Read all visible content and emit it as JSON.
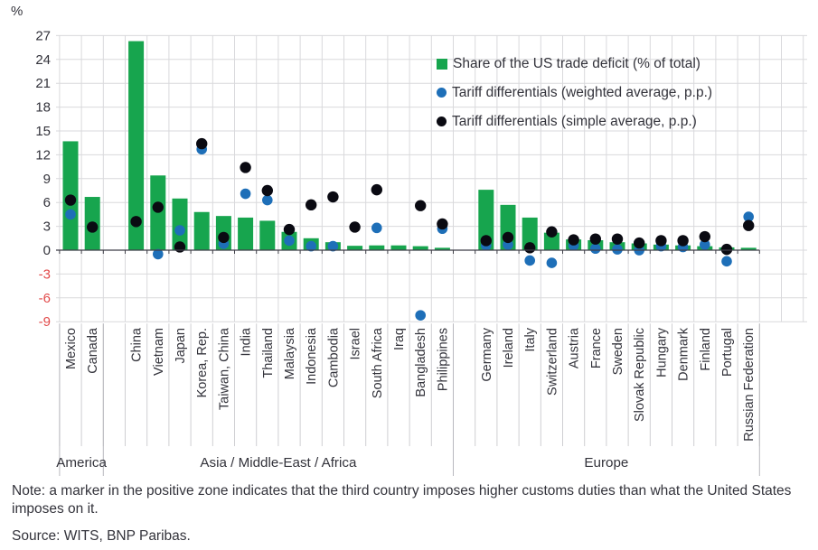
{
  "chart_data": {
    "type": "bar",
    "title": "",
    "ylabel": "%",
    "ylim": [
      -9,
      27
    ],
    "ytick_step": 3,
    "grid": true,
    "legend_position": "inside-top-right",
    "series_meta": {
      "bar": {
        "name": "Share of the US trade deficit (% of total)",
        "color": "#17a54e"
      },
      "weighted": {
        "name": "Tariff differentials (weighted average, p.p.)",
        "color": "#1e6fb8"
      },
      "simple": {
        "name": "Tariff differentials (simple average, p.p.)",
        "color": "#0a0a12"
      }
    },
    "groups": [
      {
        "label": "America",
        "rows": [
          {
            "country": "Mexico",
            "bar": 13.7,
            "weighted": 4.5,
            "simple": 6.3
          },
          {
            "country": "Canada",
            "bar": 6.7,
            "weighted": null,
            "simple": 2.9
          }
        ]
      },
      {
        "label": "Asia / Middle-East / Africa",
        "rows": [
          {
            "country": "China",
            "bar": 26.3,
            "weighted": null,
            "simple": 3.6
          },
          {
            "country": "Vietnam",
            "bar": 9.4,
            "weighted": -0.5,
            "simple": 5.4
          },
          {
            "country": "Japan",
            "bar": 6.5,
            "weighted": 2.5,
            "simple": 0.4
          },
          {
            "country": "Korea, Rep.",
            "bar": 4.8,
            "weighted": 12.7,
            "simple": 13.4
          },
          {
            "country": "Taiwan, China",
            "bar": 4.3,
            "weighted": 0.8,
            "simple": 1.6
          },
          {
            "country": "India",
            "bar": 4.1,
            "weighted": 7.1,
            "simple": 10.4
          },
          {
            "country": "Thailand",
            "bar": 3.7,
            "weighted": 6.3,
            "simple": 7.5
          },
          {
            "country": "Malaysia",
            "bar": 2.3,
            "weighted": 1.2,
            "simple": 2.6
          },
          {
            "country": "Indonesia",
            "bar": 1.5,
            "weighted": 0.5,
            "simple": 5.7
          },
          {
            "country": "Cambodia",
            "bar": 1.0,
            "weighted": 0.5,
            "simple": 6.7
          },
          {
            "country": "Israel",
            "bar": 0.55,
            "weighted": null,
            "simple": 2.9
          },
          {
            "country": "South Africa",
            "bar": 0.6,
            "weighted": 2.8,
            "simple": 7.6
          },
          {
            "country": "Iraq",
            "bar": 0.6,
            "weighted": null,
            "simple": null
          },
          {
            "country": "Bangladesh",
            "bar": 0.5,
            "weighted": -8.2,
            "simple": 5.6
          },
          {
            "country": "Philippines",
            "bar": 0.3,
            "weighted": 2.7,
            "simple": 3.3
          }
        ]
      },
      {
        "label": "Europe",
        "rows": [
          {
            "country": "Germany",
            "bar": 7.6,
            "weighted": 0.6,
            "simple": 1.2
          },
          {
            "country": "Ireland",
            "bar": 5.7,
            "weighted": 0.7,
            "simple": 1.6
          },
          {
            "country": "Italy",
            "bar": 4.1,
            "weighted": -1.3,
            "simple": 0.3
          },
          {
            "country": "Switzerland",
            "bar": 2.2,
            "weighted": -1.6,
            "simple": 2.3
          },
          {
            "country": "Austria",
            "bar": 1.35,
            "weighted": 0.6,
            "simple": 1.3
          },
          {
            "country": "France",
            "bar": 1.25,
            "weighted": 0.2,
            "simple": 1.4
          },
          {
            "country": "Sweden",
            "bar": 1.0,
            "weighted": 0.1,
            "simple": 1.4
          },
          {
            "country": "Slovak Republic",
            "bar": 0.85,
            "weighted": 0.0,
            "simple": 0.9
          },
          {
            "country": "Hungary",
            "bar": 0.7,
            "weighted": 0.5,
            "simple": 1.2
          },
          {
            "country": "Denmark",
            "bar": 0.6,
            "weighted": 0.4,
            "simple": 1.2
          },
          {
            "country": "Finland",
            "bar": 0.5,
            "weighted": 0.7,
            "simple": 1.7
          },
          {
            "country": "Portugal",
            "bar": 0.35,
            "weighted": -1.4,
            "simple": 0.1
          },
          {
            "country": "Russian Federation",
            "bar": 0.3,
            "weighted": 4.2,
            "simple": 3.1
          }
        ]
      }
    ]
  },
  "colors": {
    "bar": "#17a54e",
    "weighted": "#1e6fb8",
    "simple": "#0a0a12",
    "grid": "#d9d9dc",
    "axis": "#3f3f47",
    "text": "#33333b",
    "negative_tick": "#e24b4b",
    "band_line": "#cfcfd2",
    "region_line": "#b9b9bf"
  },
  "note": {
    "text": "Note: a marker in the positive zone indicates that the third country imposes higher customs duties than what the United States imposes on it.",
    "source": "Source: WITS, BNP Paribas."
  }
}
